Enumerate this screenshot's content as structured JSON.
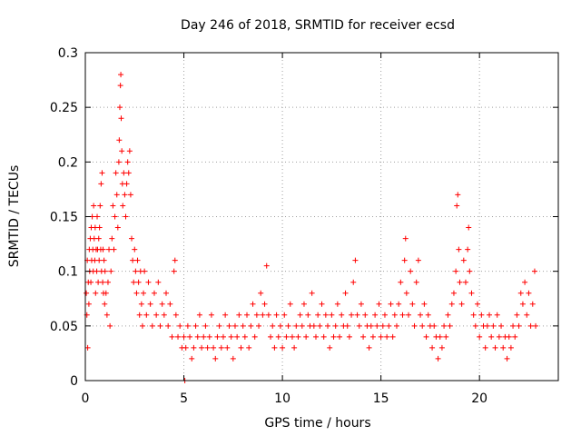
{
  "chart_data": {
    "type": "scatter",
    "title": "Day 246 of 2018, SRMTID for receiver ecsd",
    "xlabel": "GPS time / hours",
    "ylabel": "SRMTID / TECUs",
    "xlim": [
      0,
      24
    ],
    "ylim": [
      0,
      0.3
    ],
    "x_ticks": [
      0,
      5,
      10,
      15,
      20
    ],
    "x_tick_labels": [
      "0",
      "5",
      "10",
      "15",
      "20"
    ],
    "y_ticks": [
      0,
      0.05,
      0.1,
      0.15,
      0.2,
      0.25,
      0.3
    ],
    "y_tick_labels": [
      "0",
      "0.05",
      "0.1",
      "0.15",
      "0.2",
      "0.25",
      "0.3"
    ],
    "grid": true,
    "marker": "+",
    "color": "#ff0000",
    "series": [
      {
        "name": "SRMTID",
        "points": [
          [
            0.05,
            0.08
          ],
          [
            0.08,
            0.06
          ],
          [
            0.1,
            0.11
          ],
          [
            0.12,
            0.03
          ],
          [
            0.15,
            0.09
          ],
          [
            0.18,
            0.07
          ],
          [
            0.2,
            0.12
          ],
          [
            0.22,
            0.1
          ],
          [
            0.25,
            0.13
          ],
          [
            0.28,
            0.09
          ],
          [
            0.3,
            0.14
          ],
          [
            0.32,
            0.11
          ],
          [
            0.35,
            0.15
          ],
          [
            0.38,
            0.12
          ],
          [
            0.4,
            0.1
          ],
          [
            0.42,
            0.16
          ],
          [
            0.45,
            0.13
          ],
          [
            0.48,
            0.11
          ],
          [
            0.5,
            0.14
          ],
          [
            0.52,
            0.08
          ],
          [
            0.55,
            0.12
          ],
          [
            0.58,
            0.1
          ],
          [
            0.6,
            0.15
          ],
          [
            0.62,
            0.12
          ],
          [
            0.65,
            0.09
          ],
          [
            0.68,
            0.13
          ],
          [
            0.7,
            0.11
          ],
          [
            0.72,
            0.14
          ],
          [
            0.75,
            0.16
          ],
          [
            0.78,
            0.12
          ],
          [
            0.8,
            0.18
          ],
          [
            0.82,
            0.1
          ],
          [
            0.85,
            0.19
          ],
          [
            0.88,
            0.09
          ],
          [
            0.9,
            0.12
          ],
          [
            0.92,
            0.08
          ],
          [
            0.95,
            0.11
          ],
          [
            0.98,
            0.07
          ],
          [
            1.0,
            0.1
          ],
          [
            1.05,
            0.08
          ],
          [
            1.1,
            0.06
          ],
          [
            1.15,
            0.09
          ],
          [
            1.2,
            0.12
          ],
          [
            1.25,
            0.05
          ],
          [
            1.3,
            0.1
          ],
          [
            1.35,
            0.13
          ],
          [
            1.4,
            0.16
          ],
          [
            1.45,
            0.12
          ],
          [
            1.5,
            0.15
          ],
          [
            1.55,
            0.19
          ],
          [
            1.6,
            0.17
          ],
          [
            1.65,
            0.14
          ],
          [
            1.7,
            0.2
          ],
          [
            1.72,
            0.22
          ],
          [
            1.75,
            0.25
          ],
          [
            1.78,
            0.27
          ],
          [
            1.8,
            0.28
          ],
          [
            1.82,
            0.24
          ],
          [
            1.85,
            0.21
          ],
          [
            1.88,
            0.18
          ],
          [
            1.9,
            0.16
          ],
          [
            1.95,
            0.19
          ],
          [
            2.0,
            0.17
          ],
          [
            2.05,
            0.15
          ],
          [
            2.1,
            0.18
          ],
          [
            2.15,
            0.2
          ],
          [
            2.2,
            0.19
          ],
          [
            2.25,
            0.21
          ],
          [
            2.3,
            0.17
          ],
          [
            2.35,
            0.13
          ],
          [
            2.4,
            0.11
          ],
          [
            2.45,
            0.09
          ],
          [
            2.5,
            0.12
          ],
          [
            2.55,
            0.1
          ],
          [
            2.6,
            0.08
          ],
          [
            2.65,
            0.11
          ],
          [
            2.7,
            0.09
          ],
          [
            2.75,
            0.06
          ],
          [
            2.8,
            0.1
          ],
          [
            2.85,
            0.07
          ],
          [
            2.9,
            0.05
          ],
          [
            2.95,
            0.08
          ],
          [
            3.0,
            0.1
          ],
          [
            3.1,
            0.06
          ],
          [
            3.2,
            0.09
          ],
          [
            3.3,
            0.07
          ],
          [
            3.4,
            0.05
          ],
          [
            3.5,
            0.08
          ],
          [
            3.6,
            0.06
          ],
          [
            3.7,
            0.09
          ],
          [
            3.8,
            0.05
          ],
          [
            3.9,
            0.07
          ],
          [
            4.0,
            0.06
          ],
          [
            4.1,
            0.08
          ],
          [
            4.2,
            0.05
          ],
          [
            4.3,
            0.07
          ],
          [
            4.4,
            0.04
          ],
          [
            4.5,
            0.1
          ],
          [
            4.55,
            0.11
          ],
          [
            4.6,
            0.06
          ],
          [
            4.7,
            0.04
          ],
          [
            4.8,
            0.05
          ],
          [
            4.9,
            0.03
          ],
          [
            5.0,
            0.04
          ],
          [
            5.05,
            0.0
          ],
          [
            5.1,
            0.03
          ],
          [
            5.2,
            0.05
          ],
          [
            5.3,
            0.04
          ],
          [
            5.4,
            0.02
          ],
          [
            5.5,
            0.03
          ],
          [
            5.6,
            0.05
          ],
          [
            5.7,
            0.04
          ],
          [
            5.8,
            0.06
          ],
          [
            5.9,
            0.03
          ],
          [
            6.0,
            0.04
          ],
          [
            6.1,
            0.05
          ],
          [
            6.2,
            0.03
          ],
          [
            6.3,
            0.04
          ],
          [
            6.4,
            0.06
          ],
          [
            6.5,
            0.03
          ],
          [
            6.6,
            0.02
          ],
          [
            6.7,
            0.04
          ],
          [
            6.8,
            0.05
          ],
          [
            6.9,
            0.03
          ],
          [
            7.0,
            0.04
          ],
          [
            7.1,
            0.06
          ],
          [
            7.2,
            0.03
          ],
          [
            7.3,
            0.05
          ],
          [
            7.4,
            0.04
          ],
          [
            7.5,
            0.02
          ],
          [
            7.6,
            0.05
          ],
          [
            7.7,
            0.04
          ],
          [
            7.8,
            0.06
          ],
          [
            7.9,
            0.03
          ],
          [
            8.0,
            0.05
          ],
          [
            8.1,
            0.04
          ],
          [
            8.2,
            0.06
          ],
          [
            8.3,
            0.03
          ],
          [
            8.4,
            0.05
          ],
          [
            8.5,
            0.07
          ],
          [
            8.6,
            0.04
          ],
          [
            8.7,
            0.06
          ],
          [
            8.8,
            0.05
          ],
          [
            8.9,
            0.08
          ],
          [
            9.0,
            0.06
          ],
          [
            9.1,
            0.07
          ],
          [
            9.2,
            0.105
          ],
          [
            9.3,
            0.06
          ],
          [
            9.4,
            0.04
          ],
          [
            9.5,
            0.05
          ],
          [
            9.6,
            0.03
          ],
          [
            9.7,
            0.06
          ],
          [
            9.8,
            0.04
          ],
          [
            9.9,
            0.05
          ],
          [
            10.0,
            0.03
          ],
          [
            10.1,
            0.06
          ],
          [
            10.2,
            0.04
          ],
          [
            10.3,
            0.05
          ],
          [
            10.4,
            0.07
          ],
          [
            10.5,
            0.04
          ],
          [
            10.6,
            0.03
          ],
          [
            10.7,
            0.05
          ],
          [
            10.8,
            0.04
          ],
          [
            10.9,
            0.06
          ],
          [
            11.0,
            0.05
          ],
          [
            11.1,
            0.07
          ],
          [
            11.2,
            0.04
          ],
          [
            11.3,
            0.06
          ],
          [
            11.4,
            0.05
          ],
          [
            11.5,
            0.08
          ],
          [
            11.6,
            0.05
          ],
          [
            11.7,
            0.04
          ],
          [
            11.8,
            0.06
          ],
          [
            11.9,
            0.05
          ],
          [
            12.0,
            0.07
          ],
          [
            12.1,
            0.04
          ],
          [
            12.2,
            0.06
          ],
          [
            12.3,
            0.05
          ],
          [
            12.4,
            0.03
          ],
          [
            12.5,
            0.06
          ],
          [
            12.6,
            0.04
          ],
          [
            12.7,
            0.05
          ],
          [
            12.8,
            0.07
          ],
          [
            12.9,
            0.04
          ],
          [
            13.0,
            0.06
          ],
          [
            13.1,
            0.05
          ],
          [
            13.2,
            0.08
          ],
          [
            13.3,
            0.05
          ],
          [
            13.4,
            0.04
          ],
          [
            13.5,
            0.06
          ],
          [
            13.6,
            0.09
          ],
          [
            13.7,
            0.11
          ],
          [
            13.8,
            0.06
          ],
          [
            13.9,
            0.05
          ],
          [
            14.0,
            0.07
          ],
          [
            14.1,
            0.04
          ],
          [
            14.2,
            0.06
          ],
          [
            14.3,
            0.05
          ],
          [
            14.4,
            0.03
          ],
          [
            14.5,
            0.05
          ],
          [
            14.6,
            0.04
          ],
          [
            14.7,
            0.06
          ],
          [
            14.8,
            0.05
          ],
          [
            14.9,
            0.07
          ],
          [
            15.0,
            0.04
          ],
          [
            15.1,
            0.05
          ],
          [
            15.2,
            0.06
          ],
          [
            15.3,
            0.04
          ],
          [
            15.4,
            0.05
          ],
          [
            15.5,
            0.07
          ],
          [
            15.6,
            0.04
          ],
          [
            15.7,
            0.06
          ],
          [
            15.8,
            0.05
          ],
          [
            15.9,
            0.07
          ],
          [
            16.0,
            0.09
          ],
          [
            16.1,
            0.06
          ],
          [
            16.2,
            0.11
          ],
          [
            16.25,
            0.13
          ],
          [
            16.3,
            0.08
          ],
          [
            16.4,
            0.06
          ],
          [
            16.5,
            0.1
          ],
          [
            16.6,
            0.07
          ],
          [
            16.7,
            0.05
          ],
          [
            16.8,
            0.09
          ],
          [
            16.9,
            0.11
          ],
          [
            17.0,
            0.06
          ],
          [
            17.1,
            0.05
          ],
          [
            17.2,
            0.07
          ],
          [
            17.3,
            0.04
          ],
          [
            17.4,
            0.06
          ],
          [
            17.5,
            0.05
          ],
          [
            17.6,
            0.03
          ],
          [
            17.7,
            0.05
          ],
          [
            17.8,
            0.04
          ],
          [
            17.9,
            0.02
          ],
          [
            18.0,
            0.04
          ],
          [
            18.1,
            0.03
          ],
          [
            18.2,
            0.05
          ],
          [
            18.3,
            0.04
          ],
          [
            18.4,
            0.06
          ],
          [
            18.5,
            0.05
          ],
          [
            18.6,
            0.07
          ],
          [
            18.7,
            0.08
          ],
          [
            18.8,
            0.1
          ],
          [
            18.85,
            0.16
          ],
          [
            18.9,
            0.17
          ],
          [
            18.95,
            0.12
          ],
          [
            19.0,
            0.09
          ],
          [
            19.1,
            0.07
          ],
          [
            19.2,
            0.11
          ],
          [
            19.3,
            0.09
          ],
          [
            19.4,
            0.12
          ],
          [
            19.45,
            0.14
          ],
          [
            19.5,
            0.1
          ],
          [
            19.6,
            0.08
          ],
          [
            19.7,
            0.06
          ],
          [
            19.8,
            0.05
          ],
          [
            19.9,
            0.07
          ],
          [
            20.0,
            0.04
          ],
          [
            20.1,
            0.06
          ],
          [
            20.2,
            0.05
          ],
          [
            20.3,
            0.03
          ],
          [
            20.4,
            0.05
          ],
          [
            20.5,
            0.06
          ],
          [
            20.6,
            0.04
          ],
          [
            20.7,
            0.05
          ],
          [
            20.8,
            0.03
          ],
          [
            20.9,
            0.06
          ],
          [
            21.0,
            0.04
          ],
          [
            21.1,
            0.05
          ],
          [
            21.2,
            0.03
          ],
          [
            21.3,
            0.04
          ],
          [
            21.4,
            0.02
          ],
          [
            21.5,
            0.04
          ],
          [
            21.6,
            0.03
          ],
          [
            21.7,
            0.05
          ],
          [
            21.8,
            0.04
          ],
          [
            21.9,
            0.06
          ],
          [
            22.0,
            0.05
          ],
          [
            22.1,
            0.08
          ],
          [
            22.2,
            0.07
          ],
          [
            22.3,
            0.09
          ],
          [
            22.4,
            0.06
          ],
          [
            22.5,
            0.08
          ],
          [
            22.6,
            0.05
          ],
          [
            22.7,
            0.07
          ],
          [
            22.8,
            0.1
          ],
          [
            22.85,
            0.05
          ]
        ]
      }
    ]
  }
}
